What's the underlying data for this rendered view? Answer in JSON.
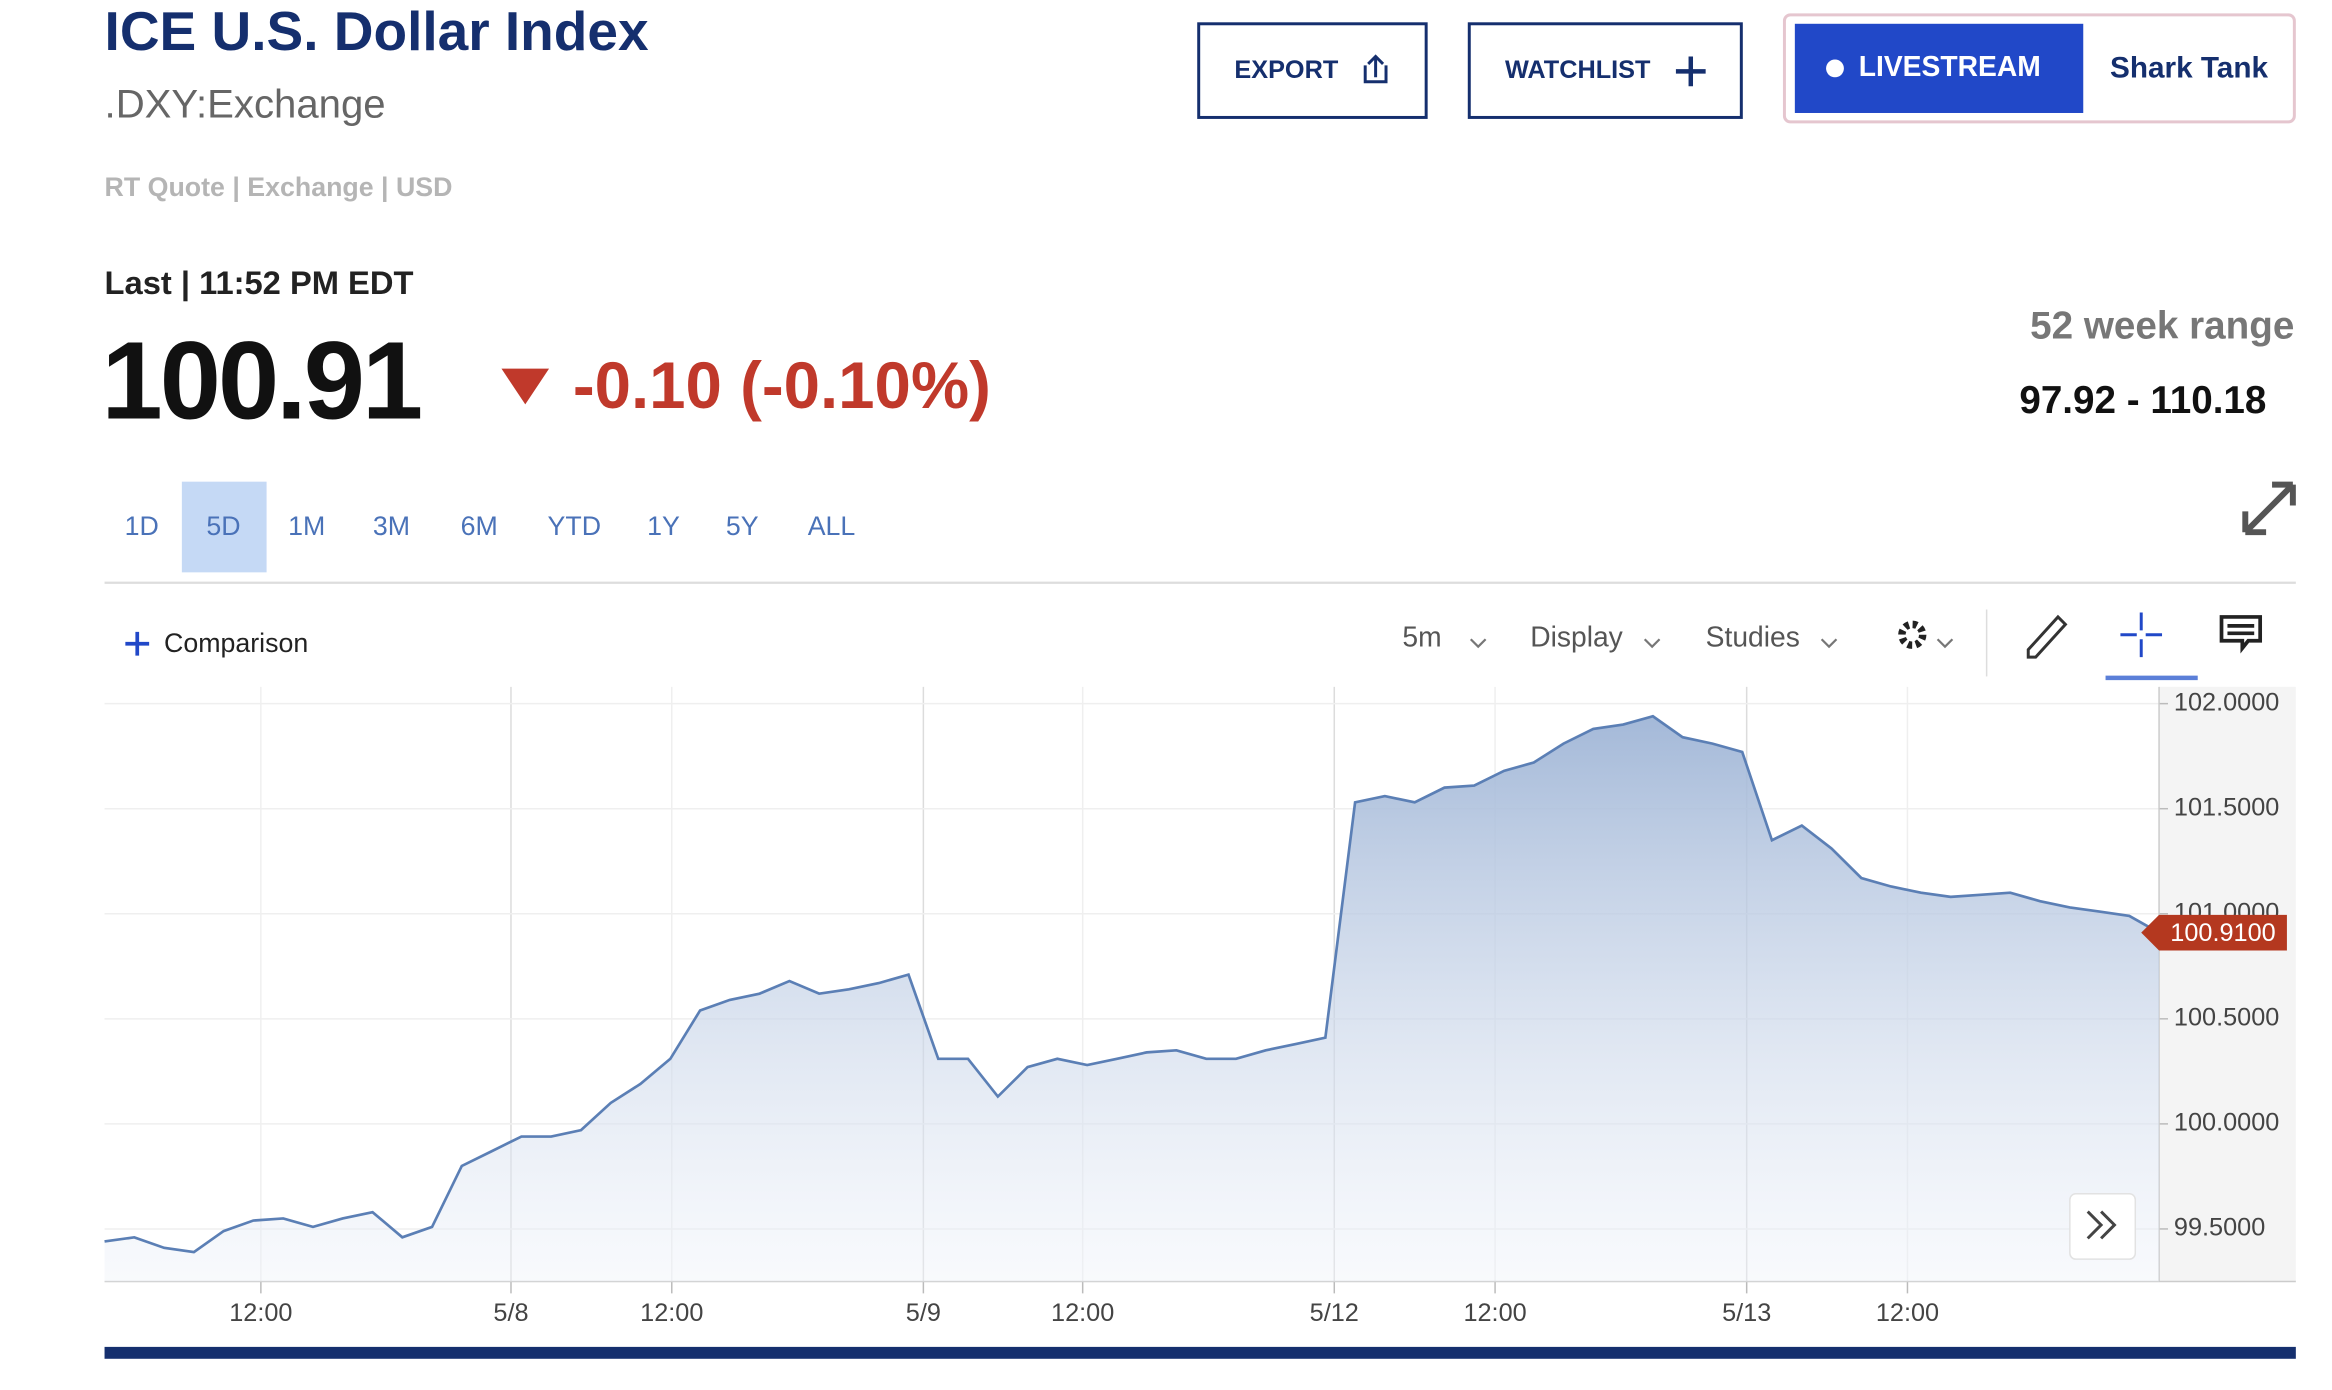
{
  "header": {
    "title": "ICE U.S. Dollar Index",
    "symbol": ".DXY:Exchange",
    "meta": "RT Quote | Exchange | USD"
  },
  "buttons": {
    "export": "EXPORT",
    "watchlist": "WATCHLIST",
    "livestream": "LIVESTREAM",
    "show": "Shark Tank"
  },
  "quote": {
    "last_label": "Last | 11:52 PM EDT",
    "price": "100.91",
    "change": "-0.10 (-0.10%)",
    "range_label": "52 week range",
    "range": "97.92 - 110.18"
  },
  "periods": [
    "1D",
    "5D",
    "1M",
    "3M",
    "6M",
    "YTD",
    "1Y",
    "5Y",
    "ALL"
  ],
  "toolbar": {
    "comparison": "Comparison",
    "interval": "5m",
    "display": "Display",
    "studies": "Studies"
  },
  "chart_data": {
    "type": "area",
    "color": "#5b7fb5",
    "values": [
      99.44,
      99.46,
      99.41,
      99.39,
      99.49,
      99.54,
      99.55,
      99.51,
      99.55,
      99.58,
      99.46,
      99.51,
      99.8,
      99.87,
      99.94,
      99.94,
      99.97,
      100.1,
      100.19,
      100.31,
      100.54,
      100.59,
      100.62,
      100.68,
      100.62,
      100.64,
      100.67,
      100.71,
      100.31,
      100.31,
      100.13,
      100.27,
      100.31,
      100.28,
      100.31,
      100.34,
      100.35,
      100.31,
      100.31,
      100.35,
      100.38,
      100.41,
      101.53,
      101.56,
      101.53,
      101.6,
      101.61,
      101.68,
      101.72,
      101.81,
      101.88,
      101.9,
      101.94,
      101.84,
      101.81,
      101.77,
      101.35,
      101.42,
      101.31,
      101.17,
      101.13,
      101.1,
      101.08,
      101.09,
      101.1,
      101.06,
      101.03,
      101.01,
      100.99,
      100.91
    ],
    "xlim": [
      0,
      69
    ],
    "xticks": [
      {
        "value": 5.25,
        "label": "12:00"
      },
      {
        "value": 13.65,
        "label": "5/8"
      },
      {
        "value": 19.05,
        "label": "12:00"
      },
      {
        "value": 27.5,
        "label": "5/9"
      },
      {
        "value": 32.85,
        "label": "12:00"
      },
      {
        "value": 41.3,
        "label": "5/12"
      },
      {
        "value": 46.7,
        "label": "12:00"
      },
      {
        "value": 55.15,
        "label": "5/13"
      },
      {
        "value": 60.55,
        "label": "12:00"
      }
    ],
    "ylim": [
      99.25,
      102.08
    ],
    "yticks": [
      {
        "value": 99.5,
        "label": "99.5000"
      },
      {
        "value": 100,
        "label": "100.0000"
      },
      {
        "value": 100.5,
        "label": "100.5000"
      },
      {
        "value": 101,
        "label": "101.0000"
      },
      {
        "value": 101.5,
        "label": "101.5000"
      },
      {
        "value": 102,
        "label": "102.0000"
      }
    ],
    "last_value_label": "100.9100",
    "grid": true
  }
}
